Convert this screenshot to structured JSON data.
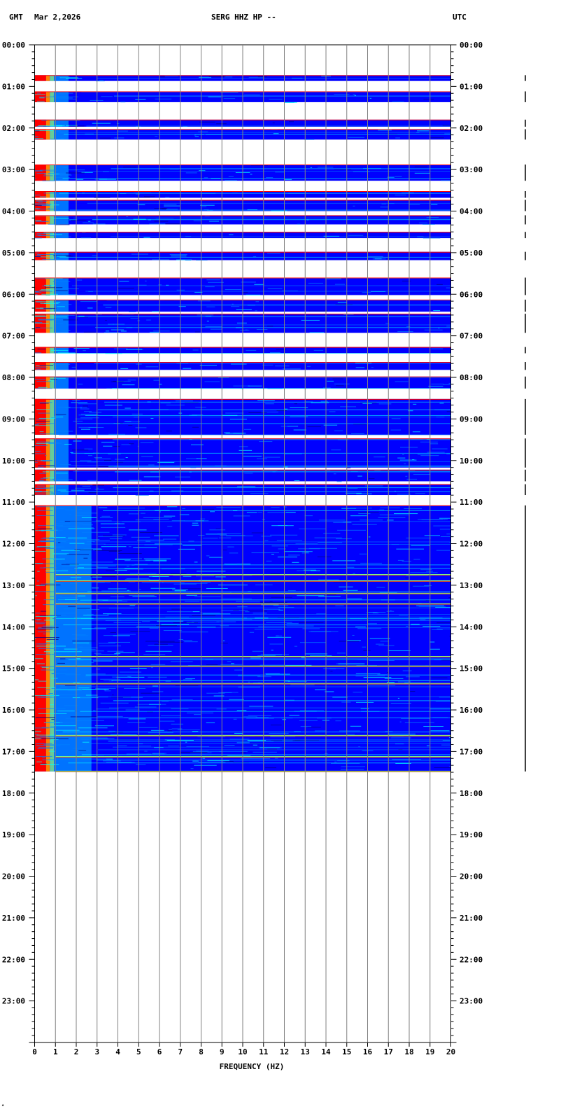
{
  "header": {
    "left_tz": "GMT",
    "date": "Mar 2,2026",
    "station": "SERG HHZ HP --",
    "right_tz": "UTC"
  },
  "chart_data": {
    "type": "heatmap",
    "title": "SERG HHZ HP --",
    "xlabel": "FREQUENCY (HZ)",
    "ylabel": "",
    "x_range_hz": [
      0,
      20
    ],
    "x_ticks": [
      "0",
      "1",
      "2",
      "3",
      "4",
      "5",
      "6",
      "7",
      "8",
      "9",
      "10",
      "11",
      "12",
      "13",
      "14",
      "15",
      "16",
      "17",
      "18",
      "19",
      "20"
    ],
    "y_range_hours": [
      0,
      24
    ],
    "y_ticks_left": [
      "00:00",
      "01:00",
      "02:00",
      "03:00",
      "04:00",
      "05:00",
      "06:00",
      "07:00",
      "08:00",
      "09:00",
      "10:00",
      "11:00",
      "12:00",
      "13:00",
      "14:00",
      "15:00",
      "16:00",
      "17:00",
      "18:00",
      "19:00",
      "20:00",
      "21:00",
      "22:00",
      "23:00"
    ],
    "y_ticks_right": [
      "00:00",
      "01:00",
      "02:00",
      "03:00",
      "04:00",
      "05:00",
      "06:00",
      "07:00",
      "08:00",
      "09:00",
      "10:00",
      "11:00",
      "12:00",
      "13:00",
      "14:00",
      "15:00",
      "16:00",
      "17:00",
      "18:00",
      "19:00",
      "20:00",
      "21:00",
      "22:00",
      "23:00"
    ],
    "grid": true,
    "colormap": [
      "#00008b",
      "#0000ff",
      "#0080ff",
      "#00ffff",
      "#80ff80",
      "#ffff00",
      "#ff8000",
      "#ff0000",
      "#8b0000"
    ],
    "data_segments_hours": [
      [
        0.73,
        0.87
      ],
      [
        1.12,
        1.38
      ],
      [
        1.8,
        1.97
      ],
      [
        2.03,
        2.28
      ],
      [
        2.88,
        3.27
      ],
      [
        3.52,
        3.68
      ],
      [
        3.73,
        4.0
      ],
      [
        4.1,
        4.32
      ],
      [
        4.5,
        4.65
      ],
      [
        4.98,
        5.18
      ],
      [
        5.6,
        6.02
      ],
      [
        6.13,
        6.42
      ],
      [
        6.47,
        6.93
      ],
      [
        7.27,
        7.42
      ],
      [
        7.63,
        7.82
      ],
      [
        7.98,
        8.27
      ],
      [
        8.52,
        9.38
      ],
      [
        9.47,
        10.17
      ],
      [
        10.22,
        10.5
      ],
      [
        10.57,
        10.83
      ],
      [
        11.08,
        17.48
      ]
    ],
    "low_freq_band_hz": [
      0,
      1
    ],
    "prominent_lines_hours": [
      12.75,
      12.9,
      13.2,
      13.45,
      14.72,
      14.95,
      15.37,
      16.62,
      17.13,
      17.48
    ]
  }
}
